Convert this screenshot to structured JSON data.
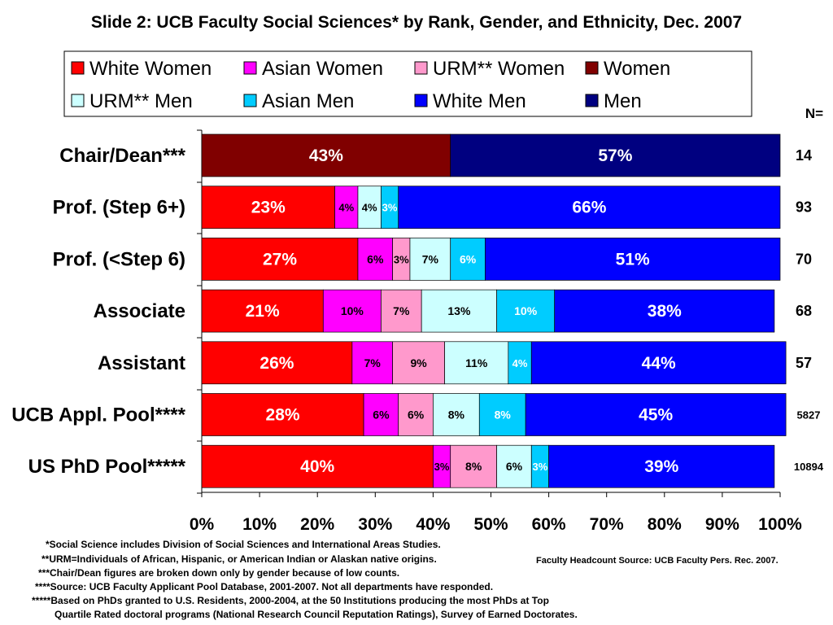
{
  "chart_data": {
    "type": "bar",
    "orientation": "horizontal",
    "stacked": true,
    "title": "Slide 2: UCB Faculty Social Sciences* by Rank, Gender, and Ethnicity, Dec. 2007",
    "xlim": [
      0,
      100
    ],
    "xticks": [
      "0%",
      "10%",
      "20%",
      "30%",
      "40%",
      "50%",
      "60%",
      "70%",
      "80%",
      "90%",
      "100%"
    ],
    "categories": [
      "Chair/Dean***",
      "Prof. (Step 6+)",
      "Prof. (<Step 6)",
      "Associate",
      "Assistant",
      "UCB Appl. Pool****",
      "US PhD Pool*****"
    ],
    "n_header": "N=",
    "n": [
      "14",
      "93",
      "70",
      "68",
      "57",
      "5827",
      "10894"
    ],
    "legend_position": "top",
    "legend": [
      {
        "name": "White Women",
        "color": "#ff0000"
      },
      {
        "name": "Asian Women",
        "color": "#ff00ff"
      },
      {
        "name": "URM** Women",
        "color": "#ff99cc"
      },
      {
        "name": "Women",
        "color": "#800000"
      },
      {
        "name": "URM** Men",
        "color": "#ccffff"
      },
      {
        "name": "Asian Men",
        "color": "#00ccff"
      },
      {
        "name": "White Men",
        "color": "#0000ff"
      },
      {
        "name": "Men",
        "color": "#000080"
      }
    ],
    "rows": [
      [
        {
          "series": "Women",
          "value": 43,
          "label": "43%",
          "color": "#800000",
          "text_color": "#ffffff"
        },
        {
          "series": "Men",
          "value": 57,
          "label": "57%",
          "color": "#000080",
          "text_color": "#ffffff"
        }
      ],
      [
        {
          "series": "White Women",
          "value": 23,
          "label": "23%",
          "color": "#ff0000",
          "text_color": "#ffffff"
        },
        {
          "series": "Asian Women",
          "value": 4,
          "label": "4%",
          "color": "#ff00ff",
          "text_color": "#000000"
        },
        {
          "series": "URM** Men",
          "value": 4,
          "label": "4%",
          "color": "#ccffff",
          "text_color": "#000000"
        },
        {
          "series": "Asian Men",
          "value": 3,
          "label": "3%",
          "color": "#00ccff",
          "text_color": "#ffffff"
        },
        {
          "series": "White Men",
          "value": 66,
          "label": "66%",
          "color": "#0000ff",
          "text_color": "#ffffff"
        }
      ],
      [
        {
          "series": "White Women",
          "value": 27,
          "label": "27%",
          "color": "#ff0000",
          "text_color": "#ffffff"
        },
        {
          "series": "Asian Women",
          "value": 6,
          "label": "6%",
          "color": "#ff00ff",
          "text_color": "#000000"
        },
        {
          "series": "URM** Women",
          "value": 3,
          "label": "3%",
          "color": "#ff99cc",
          "text_color": "#000000"
        },
        {
          "series": "URM** Men",
          "value": 7,
          "label": "7%",
          "color": "#ccffff",
          "text_color": "#000000"
        },
        {
          "series": "Asian Men",
          "value": 6,
          "label": "6%",
          "color": "#00ccff",
          "text_color": "#ffffff"
        },
        {
          "series": "White Men",
          "value": 51,
          "label": "51%",
          "color": "#0000ff",
          "text_color": "#ffffff"
        }
      ],
      [
        {
          "series": "White Women",
          "value": 21,
          "label": "21%",
          "color": "#ff0000",
          "text_color": "#ffffff"
        },
        {
          "series": "Asian Women",
          "value": 10,
          "label": "10%",
          "color": "#ff00ff",
          "text_color": "#000000"
        },
        {
          "series": "URM** Women",
          "value": 7,
          "label": "7%",
          "color": "#ff99cc",
          "text_color": "#000000"
        },
        {
          "series": "URM** Men",
          "value": 13,
          "label": "13%",
          "color": "#ccffff",
          "text_color": "#000000"
        },
        {
          "series": "Asian Men",
          "value": 10,
          "label": "10%",
          "color": "#00ccff",
          "text_color": "#ffffff"
        },
        {
          "series": "White Men",
          "value": 38,
          "label": "38%",
          "color": "#0000ff",
          "text_color": "#ffffff"
        }
      ],
      [
        {
          "series": "White Women",
          "value": 26,
          "label": "26%",
          "color": "#ff0000",
          "text_color": "#ffffff"
        },
        {
          "series": "Asian Women",
          "value": 7,
          "label": "7%",
          "color": "#ff00ff",
          "text_color": "#000000"
        },
        {
          "series": "URM** Women",
          "value": 9,
          "label": "9%",
          "color": "#ff99cc",
          "text_color": "#000000"
        },
        {
          "series": "URM** Men",
          "value": 11,
          "label": "11%",
          "color": "#ccffff",
          "text_color": "#000000"
        },
        {
          "series": "Asian Men",
          "value": 4,
          "label": "4%",
          "color": "#00ccff",
          "text_color": "#ffffff"
        },
        {
          "series": "White Men",
          "value": 44,
          "label": "44%",
          "color": "#0000ff",
          "text_color": "#ffffff"
        }
      ],
      [
        {
          "series": "White Women",
          "value": 28,
          "label": "28%",
          "color": "#ff0000",
          "text_color": "#ffffff"
        },
        {
          "series": "Asian Women",
          "value": 6,
          "label": "6%",
          "color": "#ff00ff",
          "text_color": "#000000"
        },
        {
          "series": "URM** Women",
          "value": 6,
          "label": "6%",
          "color": "#ff99cc",
          "text_color": "#000000"
        },
        {
          "series": "URM** Men",
          "value": 8,
          "label": "8%",
          "color": "#ccffff",
          "text_color": "#000000"
        },
        {
          "series": "Asian Men",
          "value": 8,
          "label": "8%",
          "color": "#00ccff",
          "text_color": "#ffffff"
        },
        {
          "series": "White Men",
          "value": 45,
          "label": "45%",
          "color": "#0000ff",
          "text_color": "#ffffff"
        }
      ],
      [
        {
          "series": "White Women",
          "value": 40,
          "label": "40%",
          "color": "#ff0000",
          "text_color": "#ffffff"
        },
        {
          "series": "Asian Women",
          "value": 3,
          "label": "3%",
          "color": "#ff00ff",
          "text_color": "#000000"
        },
        {
          "series": "URM** Women",
          "value": 8,
          "label": "8%",
          "color": "#ff99cc",
          "text_color": "#000000"
        },
        {
          "series": "URM** Men",
          "value": 6,
          "label": "6%",
          "color": "#ccffff",
          "text_color": "#000000"
        },
        {
          "series": "Asian Men",
          "value": 3,
          "label": "3%",
          "color": "#00ccff",
          "text_color": "#ffffff"
        },
        {
          "series": "White Men",
          "value": 39,
          "label": "39%",
          "color": "#0000ff",
          "text_color": "#ffffff"
        }
      ]
    ]
  },
  "footnotes": {
    "n1": "*Social Science includes Division of Social Sciences and International Areas Studies.",
    "n2": "**URM=Individuals of African, Hispanic, or American Indian or Alaskan native origins.",
    "n3": "***Chair/Dean figures are broken down only by gender because of low counts.",
    "n4": "****Source: UCB Faculty Applicant Pool Database, 2001-2007. Not all departments have responded.",
    "n5": "*****Based on PhDs granted to U.S. Residents, 2000-2004, at the 50 Institutions producing the most PhDs at Top",
    "n6": "Quartile Rated doctoral programs (National Research Council Reputation Ratings), Survey of Earned Doctorates.",
    "source": "Faculty Headcount Source:  UCB Faculty Pers. Rec. 2007."
  }
}
